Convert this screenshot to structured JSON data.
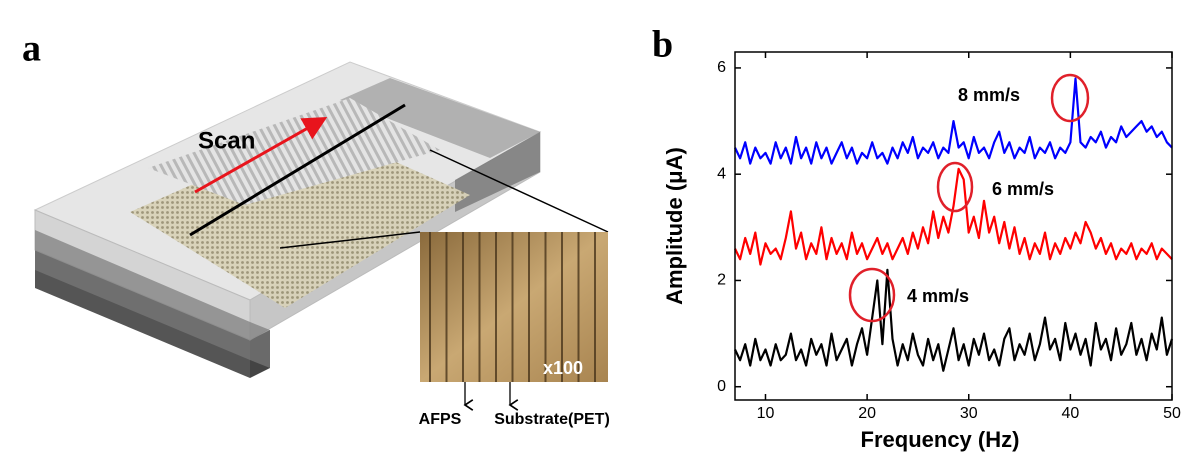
{
  "panel_labels": [
    "a",
    "b"
  ],
  "panel_a": {
    "scan": "Scan",
    "magnification": "x100",
    "afps": "AFPS",
    "substrate": "Substrate(PET)"
  },
  "chart_data": {
    "type": "line",
    "xlabel": "Frequency (Hz)",
    "ylabel": "Amplitude (μA)",
    "xlim": [
      7,
      50
    ],
    "ylim": [
      -0.25,
      6.3
    ],
    "xticks": [
      10,
      20,
      30,
      40,
      50
    ],
    "yticks": [
      0,
      2,
      4,
      6
    ],
    "annotations": [
      "8 mm/s",
      "6 mm/s",
      "4 mm/s"
    ],
    "x": [
      7,
      7.5,
      8,
      8.5,
      9,
      9.5,
      10,
      10.5,
      11,
      11.5,
      12,
      12.5,
      13,
      13.5,
      14,
      14.5,
      15,
      15.5,
      16,
      16.5,
      17,
      17.5,
      18,
      18.5,
      19,
      19.5,
      20,
      20.5,
      21,
      21.5,
      22,
      22.5,
      23,
      23.5,
      24,
      24.5,
      25,
      25.5,
      26,
      26.5,
      27,
      27.5,
      28,
      28.5,
      29,
      29.5,
      30,
      30.5,
      31,
      31.5,
      32,
      32.5,
      33,
      33.5,
      34,
      34.5,
      35,
      35.5,
      36,
      36.5,
      37,
      37.5,
      38,
      38.5,
      39,
      39.5,
      40,
      40.5,
      41,
      41.5,
      42,
      42.5,
      43,
      43.5,
      44,
      44.5,
      45,
      45.5,
      46,
      46.5,
      47,
      47.5,
      48,
      48.5,
      49,
      49.5,
      50
    ],
    "series": [
      {
        "color": "#0000ff",
        "values": [
          4.5,
          4.3,
          4.6,
          4.2,
          4.5,
          4.3,
          4.4,
          4.2,
          4.6,
          4.3,
          4.5,
          4.2,
          4.7,
          4.3,
          4.5,
          4.2,
          4.6,
          4.3,
          4.5,
          4.2,
          4.4,
          4.6,
          4.3,
          4.5,
          4.2,
          4.4,
          4.3,
          4.6,
          4.3,
          4.4,
          4.2,
          4.5,
          4.3,
          4.6,
          4.4,
          4.7,
          4.3,
          4.5,
          4.4,
          4.6,
          4.3,
          4.5,
          4.4,
          5.0,
          4.5,
          4.6,
          4.3,
          4.7,
          4.4,
          4.5,
          4.3,
          4.6,
          4.8,
          4.4,
          4.6,
          4.3,
          4.5,
          4.4,
          4.7,
          4.3,
          4.5,
          4.4,
          4.6,
          4.3,
          4.5,
          4.4,
          4.6,
          5.8,
          4.6,
          4.5,
          4.7,
          4.6,
          4.8,
          4.5,
          4.7,
          4.6,
          4.9,
          4.7,
          4.8,
          4.9,
          5.0,
          4.8,
          4.9,
          4.7,
          4.8,
          4.6,
          4.5
        ]
      },
      {
        "color": "#ff0000",
        "values": [
          2.6,
          2.4,
          2.8,
          2.5,
          2.9,
          2.3,
          2.7,
          2.5,
          2.6,
          2.4,
          2.8,
          3.3,
          2.6,
          2.9,
          2.4,
          2.7,
          2.5,
          3.0,
          2.4,
          2.8,
          2.5,
          2.7,
          2.4,
          2.9,
          2.5,
          2.7,
          2.4,
          2.6,
          2.8,
          2.5,
          2.7,
          2.4,
          2.6,
          2.8,
          2.5,
          2.9,
          2.6,
          3.0,
          2.7,
          3.3,
          2.8,
          3.2,
          2.9,
          3.4,
          4.1,
          3.9,
          2.9,
          3.2,
          2.8,
          3.5,
          2.9,
          3.2,
          2.7,
          3.1,
          2.6,
          3.0,
          2.5,
          2.8,
          2.4,
          2.7,
          2.5,
          2.9,
          2.4,
          2.7,
          2.5,
          2.8,
          2.6,
          2.9,
          2.7,
          3.1,
          2.9,
          2.6,
          2.8,
          2.5,
          2.7,
          2.4,
          2.6,
          2.5,
          2.7,
          2.4,
          2.6,
          2.5,
          2.7,
          2.4,
          2.6,
          2.5,
          2.4
        ]
      },
      {
        "color": "#000000",
        "values": [
          0.7,
          0.5,
          0.8,
          0.4,
          0.9,
          0.5,
          0.7,
          0.4,
          0.8,
          0.5,
          0.6,
          1.0,
          0.5,
          0.7,
          0.4,
          0.9,
          0.6,
          0.8,
          0.4,
          1.0,
          0.5,
          0.7,
          0.9,
          0.4,
          0.8,
          1.1,
          0.6,
          1.3,
          2.0,
          0.8,
          2.2,
          0.9,
          0.4,
          0.8,
          0.5,
          1.0,
          0.6,
          0.4,
          0.9,
          0.5,
          0.8,
          0.3,
          0.7,
          1.1,
          0.5,
          0.8,
          0.4,
          0.9,
          0.6,
          1.0,
          0.5,
          0.7,
          0.4,
          0.9,
          1.1,
          0.5,
          0.8,
          0.6,
          1.0,
          0.5,
          0.8,
          1.3,
          0.7,
          0.9,
          0.5,
          1.2,
          0.7,
          1.0,
          0.6,
          0.9,
          0.4,
          1.2,
          0.7,
          0.9,
          0.5,
          1.1,
          0.6,
          0.8,
          1.2,
          0.6,
          0.9,
          0.5,
          1.0,
          0.7,
          1.3,
          0.6,
          0.9
        ]
      }
    ]
  }
}
